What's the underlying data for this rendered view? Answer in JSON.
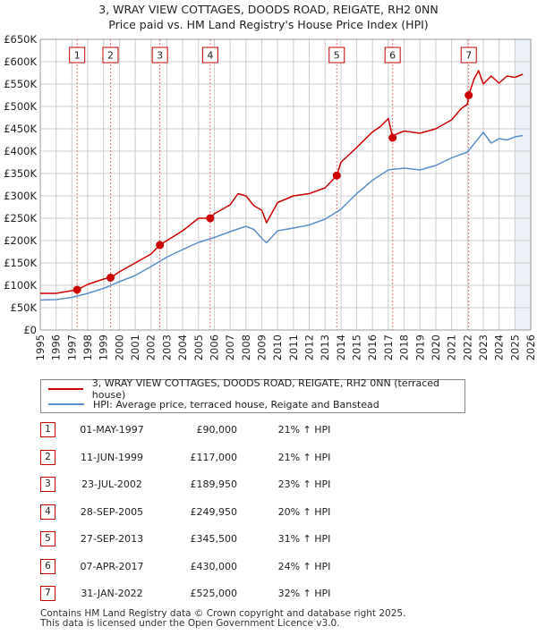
{
  "title_line1": "3, WRAY VIEW COTTAGES, DOODS ROAD, REIGATE, RH2 0NN",
  "title_line2": "Price paid vs. HM Land Registry's House Price Index (HPI)",
  "colors": {
    "property": "#cc0000",
    "hpi": "#5b8fc9",
    "shade": "#dce6f2",
    "marker_line": "#e07070",
    "grid": "#cccccc"
  },
  "chart_data": {
    "type": "line",
    "title": "Price paid vs. HM Land Registry's House Price Index (HPI)",
    "xlabel": "",
    "ylabel": "",
    "xlim": [
      1995,
      2026
    ],
    "ylim": [
      0,
      650000
    ],
    "y_ticks": [
      0,
      50000,
      100000,
      150000,
      200000,
      250000,
      300000,
      350000,
      400000,
      450000,
      500000,
      550000,
      600000,
      650000
    ],
    "y_tick_labels": [
      "£0",
      "£50K",
      "£100K",
      "£150K",
      "£200K",
      "£250K",
      "£300K",
      "£350K",
      "£400K",
      "£450K",
      "£500K",
      "£550K",
      "£600K",
      "£650K"
    ],
    "x_ticks": [
      1995,
      1996,
      1997,
      1998,
      1999,
      2000,
      2001,
      2002,
      2003,
      2004,
      2005,
      2006,
      2007,
      2008,
      2009,
      2010,
      2011,
      2012,
      2013,
      2014,
      2015,
      2016,
      2017,
      2018,
      2019,
      2020,
      2021,
      2022,
      2023,
      2024,
      2025,
      2026
    ],
    "series": [
      {
        "name": "3, WRAY VIEW COTTAGES, DOODS ROAD, REIGATE, RH2 0NN (terraced house)",
        "color": "#cc0000",
        "x": [
          1995,
          1996,
          1997,
          1997.33,
          1998,
          1999,
          1999.44,
          2000,
          2001,
          2002,
          2002.56,
          2003,
          2004,
          2005,
          2005.74,
          2006,
          2007,
          2007.5,
          2008,
          2008.5,
          2009,
          2009.3,
          2010,
          2011,
          2012,
          2013,
          2013.74,
          2014,
          2015,
          2016,
          2016.5,
          2017,
          2017.27,
          2017.5,
          2018,
          2019,
          2020,
          2021,
          2021.6,
          2022,
          2022.08,
          2022.4,
          2022.7,
          2023,
          2023.5,
          2024,
          2024.5,
          2025,
          2025.5
        ],
        "y": [
          82000,
          82000,
          88000,
          90000,
          102000,
          114000,
          117000,
          130000,
          150000,
          170000,
          189950,
          200000,
          222000,
          250000,
          249950,
          260000,
          280000,
          305000,
          300000,
          278000,
          268000,
          240000,
          285000,
          300000,
          305000,
          318000,
          345500,
          375000,
          408000,
          443000,
          455000,
          473000,
          430000,
          438000,
          445000,
          440000,
          450000,
          470000,
          495000,
          505000,
          525000,
          560000,
          580000,
          550000,
          568000,
          552000,
          568000,
          565000,
          572000
        ]
      },
      {
        "name": "HPI: Average price, terraced house, Reigate and Banstead",
        "color": "#5b8fc9",
        "x": [
          1995,
          1996,
          1997,
          1998,
          1999,
          2000,
          2001,
          2002,
          2003,
          2004,
          2005,
          2006,
          2007,
          2008,
          2008.5,
          2009,
          2009.3,
          2010,
          2011,
          2012,
          2013,
          2014,
          2015,
          2016,
          2017,
          2018,
          2019,
          2020,
          2021,
          2022,
          2022.5,
          2023,
          2023.5,
          2024,
          2024.5,
          2025,
          2025.5
        ],
        "y": [
          67000,
          68000,
          73000,
          82000,
          93000,
          108000,
          122000,
          142000,
          163000,
          180000,
          196000,
          207000,
          220000,
          232000,
          225000,
          205000,
          195000,
          222000,
          228000,
          235000,
          248000,
          270000,
          305000,
          335000,
          358000,
          362000,
          358000,
          368000,
          385000,
          398000,
          420000,
          442000,
          418000,
          428000,
          425000,
          432000,
          435000
        ]
      }
    ],
    "sales": [
      {
        "label": "1",
        "x": 1997.33,
        "y": 90000
      },
      {
        "label": "2",
        "x": 1999.44,
        "y": 117000
      },
      {
        "label": "3",
        "x": 2002.56,
        "y": 189950
      },
      {
        "label": "4",
        "x": 2005.74,
        "y": 249950
      },
      {
        "label": "5",
        "x": 2013.74,
        "y": 345500
      },
      {
        "label": "6",
        "x": 2017.27,
        "y": 430000
      },
      {
        "label": "7",
        "x": 2022.08,
        "y": 525000
      }
    ]
  },
  "legend": {
    "property": "3, WRAY VIEW COTTAGES, DOODS ROAD, REIGATE, RH2 0NN (terraced house)",
    "hpi": "HPI: Average price, terraced house, Reigate and Banstead"
  },
  "sales_table": [
    {
      "num": "1",
      "date": "01-MAY-1997",
      "price": "£90,000",
      "hpi": "21% ↑ HPI"
    },
    {
      "num": "2",
      "date": "11-JUN-1999",
      "price": "£117,000",
      "hpi": "21% ↑ HPI"
    },
    {
      "num": "3",
      "date": "23-JUL-2002",
      "price": "£189,950",
      "hpi": "23% ↑ HPI"
    },
    {
      "num": "4",
      "date": "28-SEP-2005",
      "price": "£249,950",
      "hpi": "20% ↑ HPI"
    },
    {
      "num": "5",
      "date": "27-SEP-2013",
      "price": "£345,500",
      "hpi": "31% ↑ HPI"
    },
    {
      "num": "6",
      "date": "07-APR-2017",
      "price": "£430,000",
      "hpi": "24% ↑ HPI"
    },
    {
      "num": "7",
      "date": "31-JAN-2022",
      "price": "£525,000",
      "hpi": "32% ↑ HPI"
    }
  ],
  "footer_line1": "Contains HM Land Registry data © Crown copyright and database right 2025.",
  "footer_line2": "This data is licensed under the Open Government Licence v3.0."
}
